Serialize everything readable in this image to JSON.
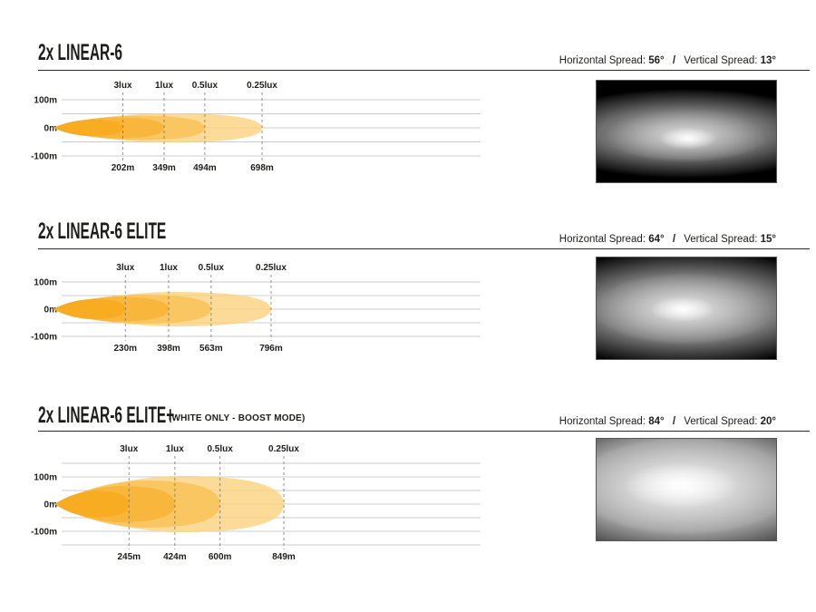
{
  "colors": {
    "background": "#ffffff",
    "text": "#1d1d1b",
    "grid_line": "#cccccc",
    "dashed_line": "#666666",
    "divider_rule": "#2a2a2a"
  },
  "sections": [
    {
      "title": "2x LINEAR-6",
      "suffix": "",
      "spread": {
        "horizontal_label": "Horizontal Spread:",
        "horizontal_value": "56°",
        "separator": "/",
        "vertical_label": "Vertical Spread:",
        "vertical_value": "13°"
      }
    },
    {
      "title": "2x LINEAR-6 ELITE",
      "suffix": "",
      "spread": {
        "horizontal_label": "Horizontal Spread:",
        "horizontal_value": "64°",
        "separator": "/",
        "vertical_label": "Vertical Spread:",
        "vertical_value": "15°"
      }
    },
    {
      "title": "2x LINEAR-6 ELITE+",
      "suffix": "(WHITE ONLY - BOOST MODE)",
      "spread": {
        "horizontal_label": "Horizontal Spread:",
        "horizontal_value": "84°",
        "separator": "/",
        "vertical_label": "Vertical Spread:",
        "vertical_value": "20°"
      }
    }
  ],
  "chart_data": [
    {
      "type": "area",
      "title": "2x LINEAR-6",
      "lux_labels": [
        "3lux",
        "1lux",
        "0.5lux",
        "0.25lux"
      ],
      "distances_m": [
        202,
        349,
        494,
        698
      ],
      "distance_labels": [
        "202m",
        "349m",
        "494m",
        "698m"
      ],
      "y_tick_labels": [
        "100m",
        "0m",
        "-100m"
      ],
      "ylim_m": [
        -100,
        100
      ],
      "grid": true,
      "legend": "none",
      "beam_colors": [
        "#F7AC22",
        "#F8B53B",
        "#F9C35A",
        "#FAD27D"
      ],
      "horizontal_spread_deg": 56,
      "vertical_spread_deg": 13
    },
    {
      "type": "area",
      "title": "2x LINEAR-6 ELITE",
      "lux_labels": [
        "3lux",
        "1lux",
        "0.5lux",
        "0.25lux"
      ],
      "distances_m": [
        230,
        398,
        563,
        796
      ],
      "distance_labels": [
        "230m",
        "398m",
        "563m",
        "796m"
      ],
      "y_tick_labels": [
        "100m",
        "0m",
        "-100m"
      ],
      "ylim_m": [
        -100,
        100
      ],
      "grid": true,
      "legend": "none",
      "beam_colors": [
        "#F7AC22",
        "#F8B53B",
        "#F9C35A",
        "#FAD27D"
      ],
      "horizontal_spread_deg": 64,
      "vertical_spread_deg": 15
    },
    {
      "type": "area",
      "title": "2x LINEAR-6 ELITE+ (WHITE ONLY - BOOST MODE)",
      "lux_labels": [
        "3lux",
        "1lux",
        "0.5lux",
        "0.25lux"
      ],
      "distances_m": [
        245,
        424,
        600,
        849
      ],
      "distance_labels": [
        "245m",
        "424m",
        "600m",
        "849m"
      ],
      "y_tick_labels": [
        "100m",
        "0m",
        "-100m"
      ],
      "ylim_m": [
        -150,
        150
      ],
      "grid": true,
      "legend": "none",
      "beam_colors": [
        "#F7AC22",
        "#F8B53B",
        "#F9C35A",
        "#FAD27D"
      ],
      "horizontal_spread_deg": 84,
      "vertical_spread_deg": 20
    }
  ]
}
